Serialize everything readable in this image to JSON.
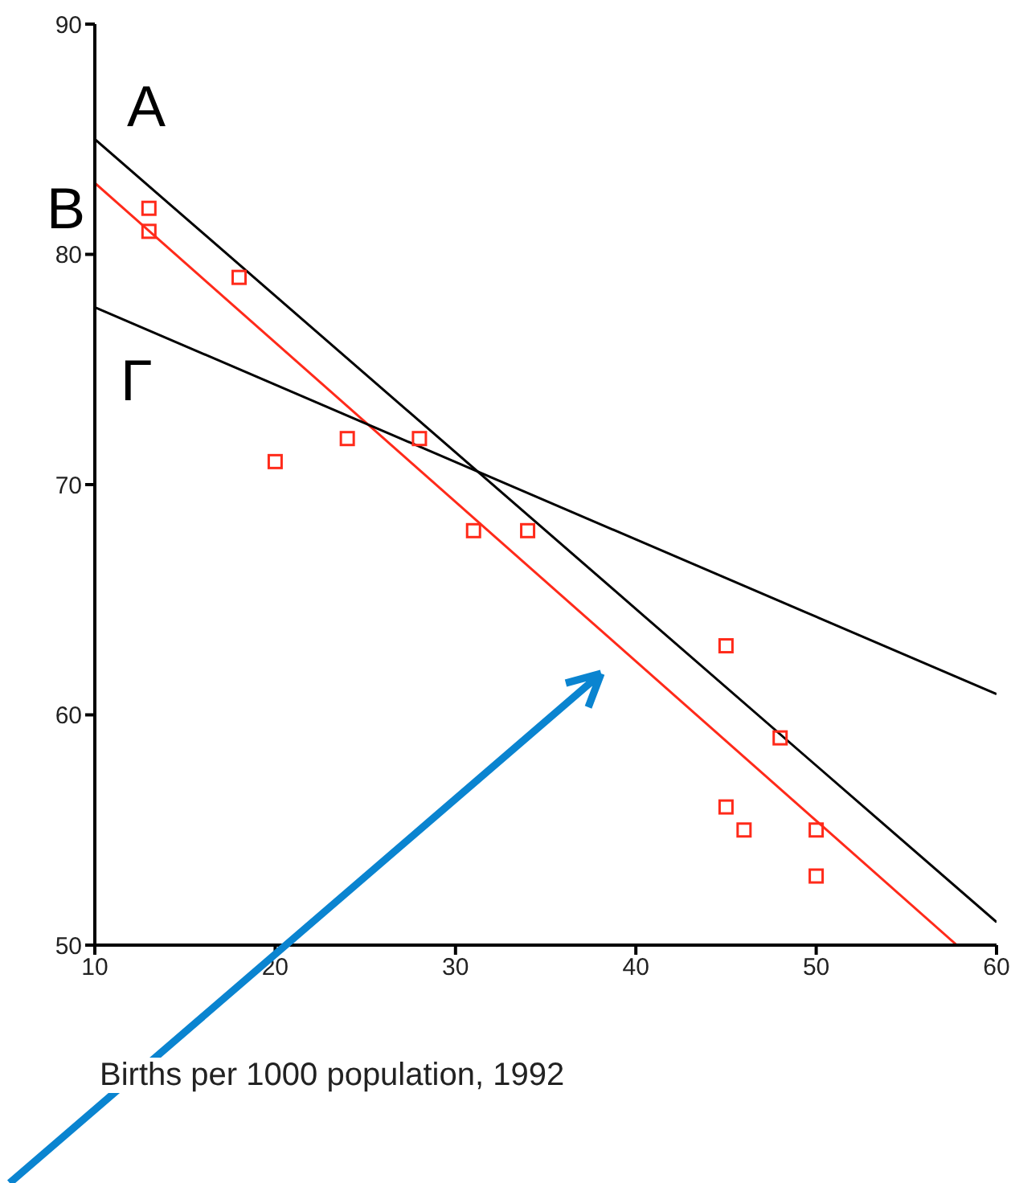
{
  "chart_data": {
    "type": "scatter",
    "xlabel": "Births per 1000 population, 1992",
    "xlim": [
      10,
      60
    ],
    "xticks": [
      10,
      20,
      30,
      40,
      50,
      60
    ],
    "ylim": [
      50,
      90
    ],
    "yticks": [
      50,
      60,
      70,
      80,
      90
    ],
    "series": [
      {
        "color": "#ff2a1a",
        "marker": "square",
        "x": [
          13,
          13,
          18,
          20,
          24,
          28,
          31,
          34,
          45,
          48,
          45,
          46,
          50,
          50
        ],
        "values": [
          82,
          81,
          79,
          71,
          72,
          72,
          68,
          68,
          63,
          59,
          56,
          55,
          55,
          53
        ]
      },
      {
        "type": "line",
        "name": "A",
        "color": "#000000",
        "x": [
          10,
          60
        ],
        "values": [
          85,
          51
        ]
      },
      {
        "type": "line",
        "name": "B",
        "color": "#ff2a1a",
        "x": [
          10,
          57.8
        ],
        "values": [
          83.1,
          50
        ]
      },
      {
        "type": "line",
        "name": "Γ",
        "color": "#000000",
        "x": [
          10,
          60
        ],
        "values": [
          77.7,
          60.9
        ]
      }
    ]
  }
}
